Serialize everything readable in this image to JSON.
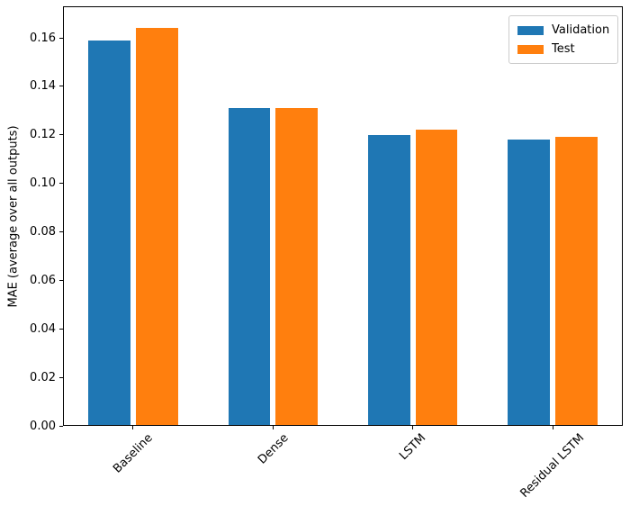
{
  "figure": {
    "background": "#ffffff"
  },
  "chart_data": {
    "type": "bar",
    "title": "",
    "xlabel": "",
    "ylabel": "MAE (average over all outputs)",
    "categories": [
      "Baseline",
      "Dense",
      "LSTM",
      "Residual LSTM"
    ],
    "series": [
      {
        "name": "Validation",
        "color": "#1f77b4",
        "values": [
          0.159,
          0.131,
          0.12,
          0.118
        ]
      },
      {
        "name": "Test",
        "color": "#ff7f0e",
        "values": [
          0.164,
          0.131,
          0.122,
          0.119
        ]
      }
    ],
    "ylim": [
      0,
      0.173
    ],
    "yticks": [
      0.0,
      0.02,
      0.04,
      0.06,
      0.08,
      0.1,
      0.12,
      0.14,
      0.16
    ],
    "ytick_decimals": 2,
    "bar_width_frac": 0.3,
    "group_offset_frac": 0.17,
    "xtick_rotation_deg": 45,
    "grid": false,
    "legend": {
      "position": "upper right",
      "entries": [
        "Validation",
        "Test"
      ],
      "border_color": "#cccccc"
    }
  }
}
